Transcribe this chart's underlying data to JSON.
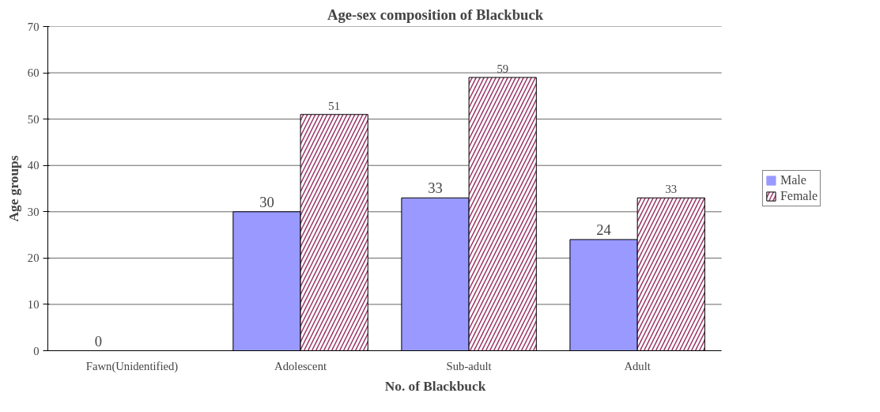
{
  "chart_data": {
    "type": "bar",
    "title": "Age-sex composition of Blackbuck",
    "xlabel": "No. of Blackbuck",
    "ylabel": "Age groups",
    "categories": [
      "Fawn(Unidentified)",
      "Adolescent",
      "Sub-adult",
      "Adult"
    ],
    "series": [
      {
        "name": "Male",
        "color": "#9999ff",
        "values": [
          0,
          30,
          33,
          24
        ]
      },
      {
        "name": "Female",
        "color": "#993366",
        "values": [
          null,
          51,
          59,
          33
        ]
      }
    ],
    "ylim": [
      0,
      70
    ],
    "yticks": [
      0,
      10,
      20,
      30,
      40,
      50,
      60,
      70
    ],
    "grid": "y",
    "legend": "right",
    "data_labels": true
  }
}
